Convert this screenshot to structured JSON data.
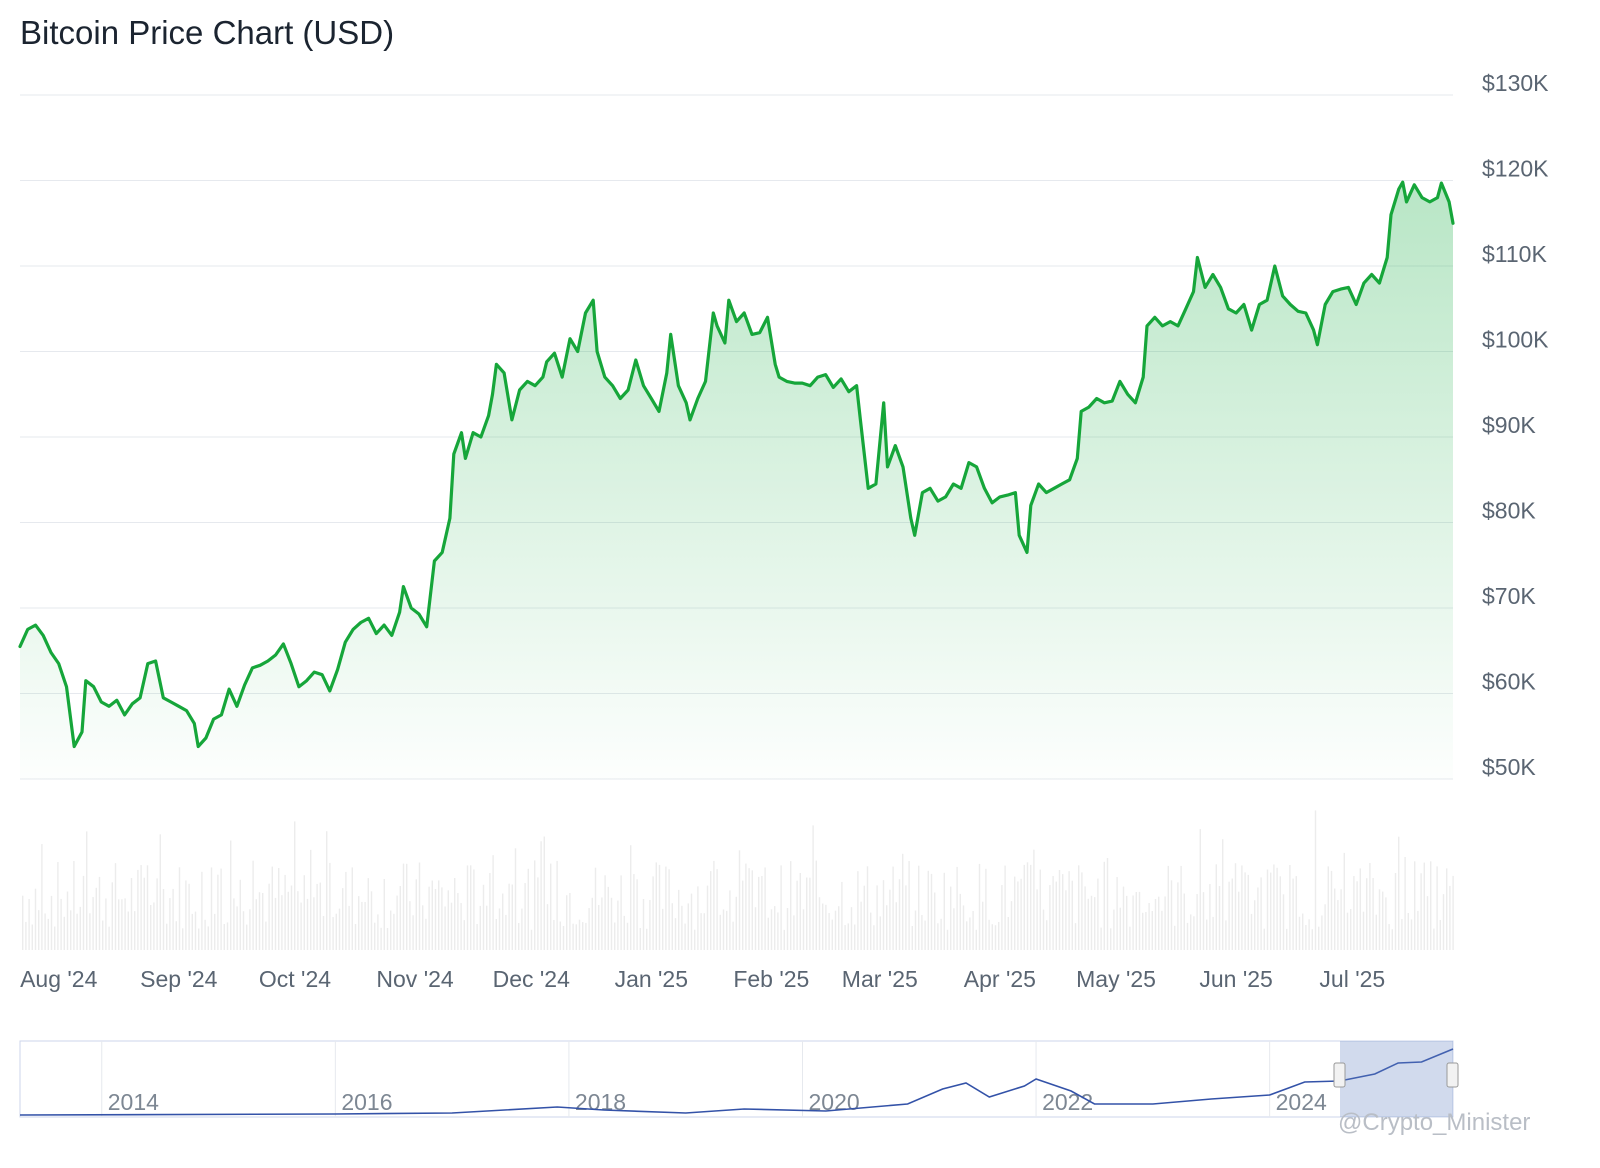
{
  "chart_data": {
    "type": "area",
    "title": "Bitcoin Price Chart (USD)",
    "xlabel": "",
    "ylabel": "",
    "ylim": [
      50000,
      130000
    ],
    "y_ticks": [
      "$130K",
      "$120K",
      "$110K",
      "$100K",
      "$90K",
      "$80K",
      "$70K",
      "$60K",
      "$50K"
    ],
    "x_ticks": [
      "Aug '24",
      "Sep '24",
      "Oct '24",
      "Nov '24",
      "Dec '24",
      "Jan '25",
      "Feb '25",
      "Mar '25",
      "Apr '25",
      "May '25",
      "Jun '25",
      "Jul '25"
    ],
    "grid": true,
    "legend": "none",
    "line_color": "#16a63a",
    "fill_color": "#22b14c",
    "series": [
      {
        "values": [
          [
            "2024-07-22",
            65500
          ],
          [
            "2024-07-24",
            67500
          ],
          [
            "2024-07-26",
            68000
          ],
          [
            "2024-07-28",
            66800
          ],
          [
            "2024-07-30",
            64800
          ],
          [
            "2024-08-01",
            63500
          ],
          [
            "2024-08-03",
            60800
          ],
          [
            "2024-08-05",
            53800
          ],
          [
            "2024-08-07",
            55500
          ],
          [
            "2024-08-08",
            61500
          ],
          [
            "2024-08-10",
            60800
          ],
          [
            "2024-08-12",
            59000
          ],
          [
            "2024-08-14",
            58500
          ],
          [
            "2024-08-16",
            59200
          ],
          [
            "2024-08-18",
            57500
          ],
          [
            "2024-08-20",
            58800
          ],
          [
            "2024-08-22",
            59500
          ],
          [
            "2024-08-24",
            63500
          ],
          [
            "2024-08-26",
            63800
          ],
          [
            "2024-08-28",
            59500
          ],
          [
            "2024-08-30",
            59000
          ],
          [
            "2024-09-01",
            58500
          ],
          [
            "2024-09-03",
            58000
          ],
          [
            "2024-09-05",
            56500
          ],
          [
            "2024-09-06",
            53800
          ],
          [
            "2024-09-08",
            54800
          ],
          [
            "2024-09-10",
            57000
          ],
          [
            "2024-09-12",
            57500
          ],
          [
            "2024-09-14",
            60500
          ],
          [
            "2024-09-16",
            58500
          ],
          [
            "2024-09-18",
            61000
          ],
          [
            "2024-09-20",
            63000
          ],
          [
            "2024-09-22",
            63300
          ],
          [
            "2024-09-24",
            63800
          ],
          [
            "2024-09-26",
            64500
          ],
          [
            "2024-09-28",
            65800
          ],
          [
            "2024-09-30",
            63500
          ],
          [
            "2024-10-02",
            60800
          ],
          [
            "2024-10-04",
            61500
          ],
          [
            "2024-10-06",
            62500
          ],
          [
            "2024-10-08",
            62200
          ],
          [
            "2024-10-10",
            60300
          ],
          [
            "2024-10-12",
            62800
          ],
          [
            "2024-10-14",
            66000
          ],
          [
            "2024-10-16",
            67500
          ],
          [
            "2024-10-18",
            68300
          ],
          [
            "2024-10-20",
            68800
          ],
          [
            "2024-10-22",
            67000
          ],
          [
            "2024-10-24",
            68000
          ],
          [
            "2024-10-26",
            66800
          ],
          [
            "2024-10-28",
            69500
          ],
          [
            "2024-10-29",
            72500
          ],
          [
            "2024-10-31",
            70000
          ],
          [
            "2024-11-02",
            69300
          ],
          [
            "2024-11-04",
            67800
          ],
          [
            "2024-11-06",
            75500
          ],
          [
            "2024-11-08",
            76500
          ],
          [
            "2024-11-10",
            80500
          ],
          [
            "2024-11-11",
            88000
          ],
          [
            "2024-11-13",
            90500
          ],
          [
            "2024-11-14",
            87500
          ],
          [
            "2024-11-16",
            90500
          ],
          [
            "2024-11-18",
            90000
          ],
          [
            "2024-11-20",
            92500
          ],
          [
            "2024-11-21",
            95000
          ],
          [
            "2024-11-22",
            98500
          ],
          [
            "2024-11-24",
            97500
          ],
          [
            "2024-11-26",
            92000
          ],
          [
            "2024-11-28",
            95500
          ],
          [
            "2024-11-30",
            96500
          ],
          [
            "2024-12-02",
            96000
          ],
          [
            "2024-12-04",
            97000
          ],
          [
            "2024-12-05",
            98800
          ],
          [
            "2024-12-07",
            99800
          ],
          [
            "2024-12-09",
            97000
          ],
          [
            "2024-12-11",
            101500
          ],
          [
            "2024-12-13",
            100000
          ],
          [
            "2024-12-15",
            104500
          ],
          [
            "2024-12-17",
            106000
          ],
          [
            "2024-12-18",
            100000
          ],
          [
            "2024-12-20",
            97000
          ],
          [
            "2024-12-22",
            96000
          ],
          [
            "2024-12-24",
            94500
          ],
          [
            "2024-12-26",
            95500
          ],
          [
            "2024-12-28",
            99000
          ],
          [
            "2024-12-30",
            96000
          ],
          [
            "2025-01-01",
            94500
          ],
          [
            "2025-01-03",
            93000
          ],
          [
            "2025-01-05",
            97500
          ],
          [
            "2025-01-06",
            102000
          ],
          [
            "2025-01-08",
            96000
          ],
          [
            "2025-01-10",
            94000
          ],
          [
            "2025-01-11",
            92000
          ],
          [
            "2025-01-13",
            94500
          ],
          [
            "2025-01-15",
            96500
          ],
          [
            "2025-01-17",
            104500
          ],
          [
            "2025-01-18",
            103000
          ],
          [
            "2025-01-20",
            101000
          ],
          [
            "2025-01-21",
            106000
          ],
          [
            "2025-01-23",
            103500
          ],
          [
            "2025-01-25",
            104500
          ],
          [
            "2025-01-27",
            102000
          ],
          [
            "2025-01-29",
            102200
          ],
          [
            "2025-01-31",
            104000
          ],
          [
            "2025-02-02",
            98500
          ],
          [
            "2025-02-03",
            97000
          ],
          [
            "2025-02-05",
            96500
          ],
          [
            "2025-02-07",
            96300
          ],
          [
            "2025-02-09",
            96300
          ],
          [
            "2025-02-11",
            96000
          ],
          [
            "2025-02-13",
            97000
          ],
          [
            "2025-02-15",
            97300
          ],
          [
            "2025-02-17",
            95800
          ],
          [
            "2025-02-19",
            96800
          ],
          [
            "2025-02-21",
            95300
          ],
          [
            "2025-02-23",
            96000
          ],
          [
            "2025-02-24",
            92000
          ],
          [
            "2025-02-26",
            84000
          ],
          [
            "2025-02-28",
            84500
          ],
          [
            "2025-03-02",
            94000
          ],
          [
            "2025-03-03",
            86500
          ],
          [
            "2025-03-05",
            89000
          ],
          [
            "2025-03-07",
            86500
          ],
          [
            "2025-03-09",
            80500
          ],
          [
            "2025-03-10",
            78500
          ],
          [
            "2025-03-12",
            83500
          ],
          [
            "2025-03-14",
            84000
          ],
          [
            "2025-03-16",
            82500
          ],
          [
            "2025-03-18",
            83000
          ],
          [
            "2025-03-20",
            84500
          ],
          [
            "2025-03-22",
            84000
          ],
          [
            "2025-03-24",
            87000
          ],
          [
            "2025-03-26",
            86500
          ],
          [
            "2025-03-28",
            84000
          ],
          [
            "2025-03-30",
            82300
          ],
          [
            "2025-04-01",
            83000
          ],
          [
            "2025-04-03",
            83200
          ],
          [
            "2025-04-05",
            83500
          ],
          [
            "2025-04-06",
            78500
          ],
          [
            "2025-04-08",
            76500
          ],
          [
            "2025-04-09",
            82000
          ],
          [
            "2025-04-11",
            84500
          ],
          [
            "2025-04-13",
            83500
          ],
          [
            "2025-04-15",
            84000
          ],
          [
            "2025-04-17",
            84500
          ],
          [
            "2025-04-19",
            85000
          ],
          [
            "2025-04-21",
            87500
          ],
          [
            "2025-04-22",
            93000
          ],
          [
            "2025-04-24",
            93500
          ],
          [
            "2025-04-26",
            94500
          ],
          [
            "2025-04-28",
            94000
          ],
          [
            "2025-04-30",
            94200
          ],
          [
            "2025-05-02",
            96500
          ],
          [
            "2025-05-04",
            95000
          ],
          [
            "2025-05-06",
            94000
          ],
          [
            "2025-05-08",
            97000
          ],
          [
            "2025-05-09",
            103000
          ],
          [
            "2025-05-11",
            104000
          ],
          [
            "2025-05-13",
            103000
          ],
          [
            "2025-05-15",
            103500
          ],
          [
            "2025-05-17",
            103000
          ],
          [
            "2025-05-19",
            105000
          ],
          [
            "2025-05-21",
            107000
          ],
          [
            "2025-05-22",
            111000
          ],
          [
            "2025-05-24",
            107500
          ],
          [
            "2025-05-26",
            109000
          ],
          [
            "2025-05-28",
            107500
          ],
          [
            "2025-05-30",
            105000
          ],
          [
            "2025-06-01",
            104500
          ],
          [
            "2025-06-03",
            105500
          ],
          [
            "2025-06-05",
            102500
          ],
          [
            "2025-06-07",
            105500
          ],
          [
            "2025-06-09",
            106000
          ],
          [
            "2025-06-11",
            110000
          ],
          [
            "2025-06-13",
            106500
          ],
          [
            "2025-06-15",
            105500
          ],
          [
            "2025-06-17",
            104700
          ],
          [
            "2025-06-19",
            104500
          ],
          [
            "2025-06-21",
            102500
          ],
          [
            "2025-06-22",
            100800
          ],
          [
            "2025-06-24",
            105500
          ],
          [
            "2025-06-26",
            107000
          ],
          [
            "2025-06-28",
            107300
          ],
          [
            "2025-06-30",
            107500
          ],
          [
            "2025-07-02",
            105500
          ],
          [
            "2025-07-04",
            108000
          ],
          [
            "2025-07-06",
            109000
          ],
          [
            "2025-07-08",
            108000
          ],
          [
            "2025-07-10",
            111000
          ],
          [
            "2025-07-11",
            116000
          ],
          [
            "2025-07-13",
            119000
          ],
          [
            "2025-07-14",
            119800
          ],
          [
            "2025-07-15",
            117500
          ],
          [
            "2025-07-17",
            119500
          ],
          [
            "2025-07-19",
            118000
          ],
          [
            "2025-07-21",
            117500
          ],
          [
            "2025-07-23",
            118000
          ],
          [
            "2025-07-24",
            119700
          ],
          [
            "2025-07-26",
            117500
          ],
          [
            "2025-07-27",
            115000
          ]
        ]
      }
    ]
  },
  "navigator": {
    "ticks": [
      "2014",
      "2016",
      "2018",
      "2020",
      "2022",
      "2024"
    ]
  },
  "watermark": {
    "text": "@Crypto_Minister"
  }
}
